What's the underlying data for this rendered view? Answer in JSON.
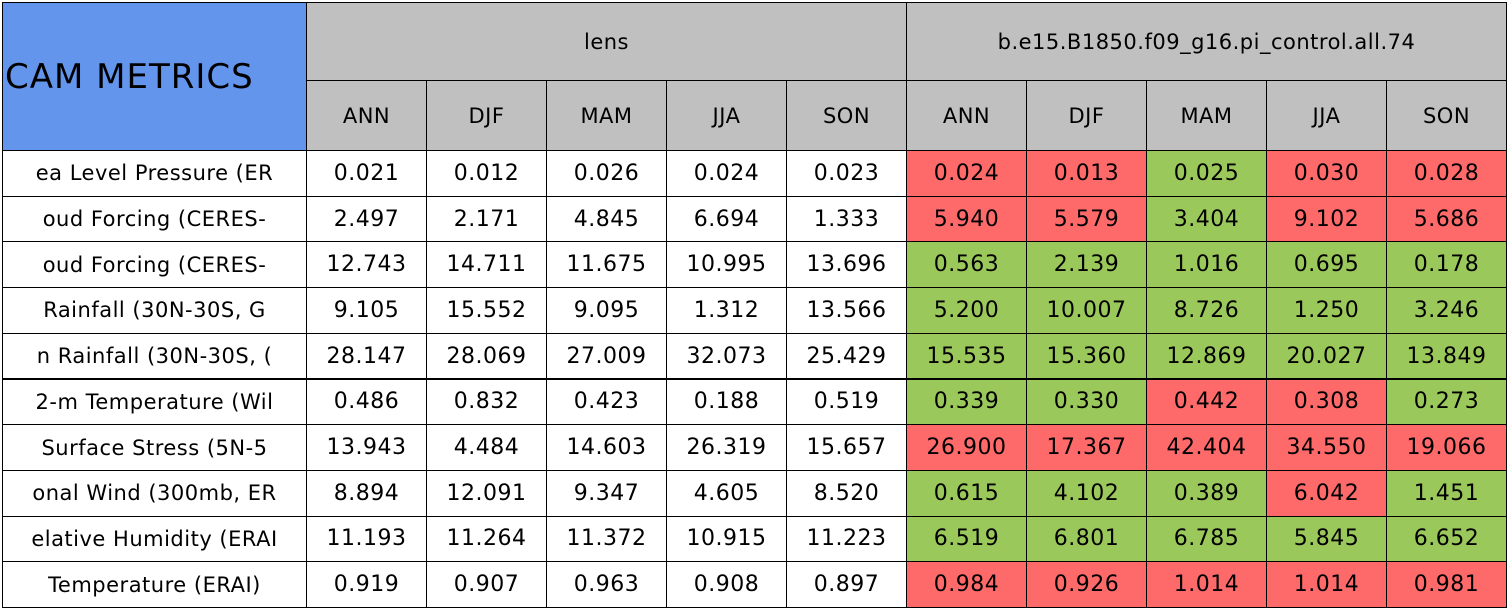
{
  "table": {
    "title": "CAM METRICS",
    "groups": [
      {
        "name": "lens",
        "seasons": [
          "ANN",
          "DJF",
          "MAM",
          "JJA",
          "SON"
        ]
      },
      {
        "name": "b.e15.B1850.f09_g16.pi_control.all.74",
        "seasons": [
          "ANN",
          "DJF",
          "MAM",
          "JJA",
          "SON"
        ]
      }
    ],
    "rows": [
      {
        "label": "ea Level Pressure (ER",
        "lens": [
          "0.021",
          "0.012",
          "0.026",
          "0.024",
          "0.023"
        ],
        "control": [
          "0.024",
          "0.013",
          "0.025",
          "0.030",
          "0.028"
        ],
        "control_colors": [
          "#fe6a6a",
          "#fe6a6a",
          "#9bc85a",
          "#fe6a6a",
          "#fe6a6a"
        ]
      },
      {
        "label": "oud Forcing (CERES-",
        "lens": [
          "2.497",
          "2.171",
          "4.845",
          "6.694",
          "1.333"
        ],
        "control": [
          "5.940",
          "5.579",
          "3.404",
          "9.102",
          "5.686"
        ],
        "control_colors": [
          "#fe6a6a",
          "#fe6a6a",
          "#9bc85a",
          "#fe6a6a",
          "#fe6a6a"
        ]
      },
      {
        "label": "oud Forcing (CERES-",
        "lens": [
          "12.743",
          "14.711",
          "11.675",
          "10.995",
          "13.696"
        ],
        "control": [
          "0.563",
          "2.139",
          "1.016",
          "0.695",
          "0.178"
        ],
        "control_colors": [
          "#9bc85a",
          "#9bc85a",
          "#9bc85a",
          "#9bc85a",
          "#9bc85a"
        ]
      },
      {
        "label": "Rainfall (30N-30S, G",
        "lens": [
          "9.105",
          "15.552",
          "9.095",
          "1.312",
          "13.566"
        ],
        "control": [
          "5.200",
          "10.007",
          "8.726",
          "1.250",
          "3.246"
        ],
        "control_colors": [
          "#9bc85a",
          "#9bc85a",
          "#9bc85a",
          "#9bc85a",
          "#9bc85a"
        ]
      },
      {
        "label": "n Rainfall (30N-30S, (",
        "lens": [
          "28.147",
          "28.069",
          "27.009",
          "32.073",
          "25.429"
        ],
        "control": [
          "15.535",
          "15.360",
          "12.869",
          "20.027",
          "13.849"
        ],
        "control_colors": [
          "#9bc85a",
          "#9bc85a",
          "#9bc85a",
          "#9bc85a",
          "#9bc85a"
        ]
      },
      {
        "label": "2-m Temperature (Wil",
        "lens": [
          "0.486",
          "0.832",
          "0.423",
          "0.188",
          "0.519"
        ],
        "control": [
          "0.339",
          "0.330",
          "0.442",
          "0.308",
          "0.273"
        ],
        "control_colors": [
          "#9bc85a",
          "#9bc85a",
          "#fe6a6a",
          "#fe6a6a",
          "#9bc85a"
        ]
      },
      {
        "label": "Surface Stress (5N-5",
        "lens": [
          "13.943",
          "4.484",
          "14.603",
          "26.319",
          "15.657"
        ],
        "control": [
          "26.900",
          "17.367",
          "42.404",
          "34.550",
          "19.066"
        ],
        "control_colors": [
          "#fe6a6a",
          "#fe6a6a",
          "#fe6a6a",
          "#fe6a6a",
          "#fe6a6a"
        ]
      },
      {
        "label": "onal Wind (300mb, ER",
        "lens": [
          "8.894",
          "12.091",
          "9.347",
          "4.605",
          "8.520"
        ],
        "control": [
          "0.615",
          "4.102",
          "0.389",
          "6.042",
          "1.451"
        ],
        "control_colors": [
          "#9bc85a",
          "#9bc85a",
          "#9bc85a",
          "#fe6a6a",
          "#9bc85a"
        ]
      },
      {
        "label": "elative Humidity (ERAI",
        "lens": [
          "11.193",
          "11.264",
          "11.372",
          "10.915",
          "11.223"
        ],
        "control": [
          "6.519",
          "6.801",
          "6.785",
          "5.845",
          "6.652"
        ],
        "control_colors": [
          "#9bc85a",
          "#9bc85a",
          "#9bc85a",
          "#9bc85a",
          "#9bc85a"
        ]
      },
      {
        "label": "Temperature (ERAI)",
        "lens": [
          "0.919",
          "0.907",
          "0.963",
          "0.908",
          "0.897"
        ],
        "control": [
          "0.984",
          "0.926",
          "1.014",
          "1.014",
          "0.981"
        ],
        "control_colors": [
          "#fe6a6a",
          "#fe6a6a",
          "#fe6a6a",
          "#fe6a6a",
          "#fe6a6a"
        ]
      }
    ]
  }
}
